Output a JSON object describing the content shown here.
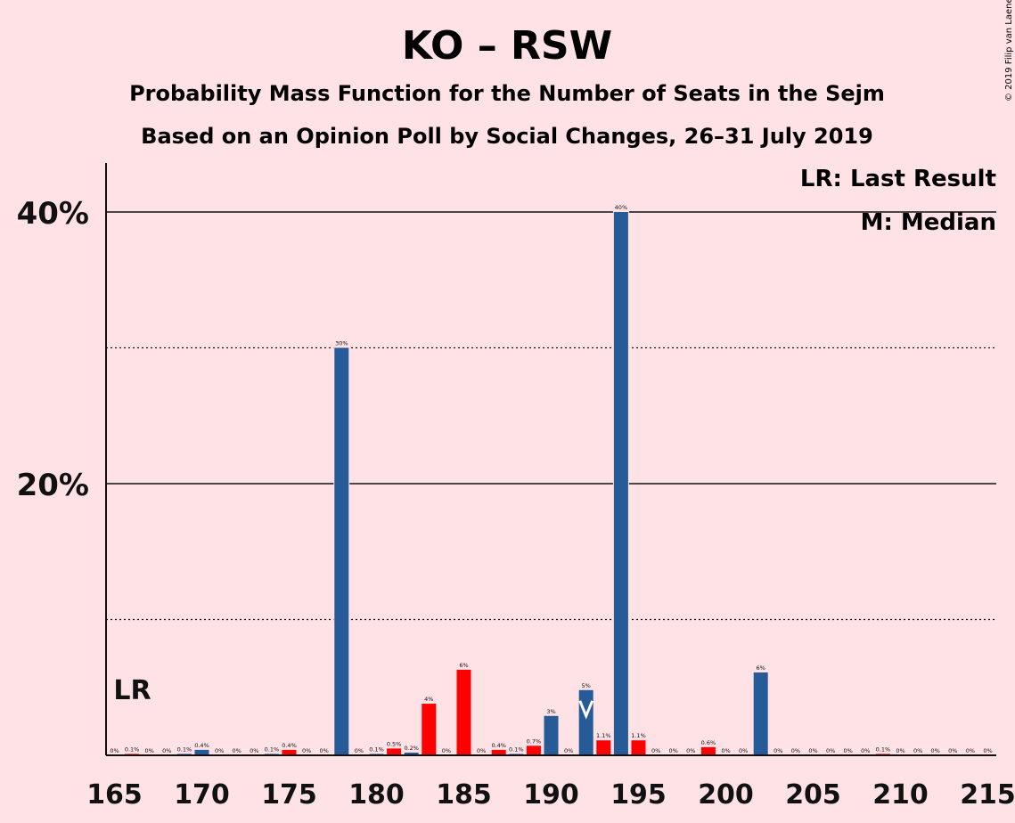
{
  "chart_data": {
    "type": "bar",
    "title": "KO – RSW",
    "subtitle": "Probability Mass Function for the Number of Seats in the Sejm",
    "subtitle2": "Based on an Opinion Poll by Social Changes, 26–31 July 2019",
    "copyright": "© 2019 Filip van Laenen",
    "xlim": [
      165,
      215
    ],
    "ylim": [
      0,
      43.5
    ],
    "x_ticks": [
      "165",
      "170",
      "175",
      "180",
      "185",
      "190",
      "195",
      "200",
      "205",
      "210",
      "215"
    ],
    "y_ticks": [
      {
        "value": 20,
        "label": "20%"
      },
      {
        "value": 40,
        "label": "40%"
      }
    ],
    "minor_gridlines": [
      10,
      30
    ],
    "grid": true,
    "legend": {
      "position": "top-right",
      "entries": [
        "LR: Last Result",
        "M: Median"
      ]
    },
    "last_result": {
      "seat": 165,
      "label": "LR"
    },
    "median": {
      "seat": 192
    },
    "colors": {
      "blue": "#275b97",
      "red": "#ff0000",
      "background": "#ffe2e6",
      "axis": "#111111"
    },
    "bars": [
      {
        "seat": 165,
        "value": 0,
        "label": "0%",
        "color": "blue"
      },
      {
        "seat": 166,
        "value": 0.1,
        "label": "0.1%",
        "color": "red"
      },
      {
        "seat": 167,
        "value": 0,
        "label": "0%",
        "color": "blue"
      },
      {
        "seat": 168,
        "value": 0,
        "label": "0%",
        "color": "red"
      },
      {
        "seat": 169,
        "value": 0.1,
        "label": "0.1%",
        "color": "blue"
      },
      {
        "seat": 170,
        "value": 0.4,
        "label": "0.4%",
        "color": "blue"
      },
      {
        "seat": 171,
        "value": 0,
        "label": "0%",
        "color": "red"
      },
      {
        "seat": 172,
        "value": 0,
        "label": "0%",
        "color": "blue"
      },
      {
        "seat": 173,
        "value": 0,
        "label": "0%",
        "color": "red"
      },
      {
        "seat": 174,
        "value": 0.1,
        "label": "0.1%",
        "color": "blue"
      },
      {
        "seat": 175,
        "value": 0.4,
        "label": "0.4%",
        "color": "red"
      },
      {
        "seat": 176,
        "value": 0,
        "label": "0%",
        "color": "blue"
      },
      {
        "seat": 177,
        "value": 0,
        "label": "0%",
        "color": "red"
      },
      {
        "seat": 178,
        "value": 30,
        "label": "30%",
        "color": "blue"
      },
      {
        "seat": 179,
        "value": 0,
        "label": "0%",
        "color": "red"
      },
      {
        "seat": 180,
        "value": 0.1,
        "label": "0.1%",
        "color": "blue"
      },
      {
        "seat": 181,
        "value": 0.5,
        "label": "0.5%",
        "color": "red"
      },
      {
        "seat": 182,
        "value": 0.2,
        "label": "0.2%",
        "color": "blue"
      },
      {
        "seat": 183,
        "value": 3.8,
        "label": "4%",
        "color": "red"
      },
      {
        "seat": 184,
        "value": 0,
        "label": "0%",
        "color": "blue"
      },
      {
        "seat": 185,
        "value": 6.3,
        "label": "6%",
        "color": "red"
      },
      {
        "seat": 186,
        "value": 0,
        "label": "0%",
        "color": "blue"
      },
      {
        "seat": 187,
        "value": 0.4,
        "label": "0.4%",
        "color": "red"
      },
      {
        "seat": 188,
        "value": 0.1,
        "label": "0.1%",
        "color": "blue"
      },
      {
        "seat": 189,
        "value": 0.7,
        "label": "0.7%",
        "color": "red"
      },
      {
        "seat": 190,
        "value": 2.9,
        "label": "3%",
        "color": "blue"
      },
      {
        "seat": 191,
        "value": 0,
        "label": "0%",
        "color": "red"
      },
      {
        "seat": 192,
        "value": 4.8,
        "label": "5%",
        "color": "blue"
      },
      {
        "seat": 193,
        "value": 1.1,
        "label": "1.1%",
        "color": "red"
      },
      {
        "seat": 194,
        "value": 40,
        "label": "40%",
        "color": "blue"
      },
      {
        "seat": 195,
        "value": 1.1,
        "label": "1.1%",
        "color": "red"
      },
      {
        "seat": 196,
        "value": 0,
        "label": "0%",
        "color": "blue"
      },
      {
        "seat": 197,
        "value": 0,
        "label": "0%",
        "color": "red"
      },
      {
        "seat": 198,
        "value": 0,
        "label": "0%",
        "color": "blue"
      },
      {
        "seat": 199,
        "value": 0.6,
        "label": "0.6%",
        "color": "red"
      },
      {
        "seat": 200,
        "value": 0,
        "label": "0%",
        "color": "blue"
      },
      {
        "seat": 201,
        "value": 0,
        "label": "0%",
        "color": "red"
      },
      {
        "seat": 202,
        "value": 6.1,
        "label": "6%",
        "color": "blue"
      },
      {
        "seat": 203,
        "value": 0,
        "label": "0%",
        "color": "red"
      },
      {
        "seat": 204,
        "value": 0,
        "label": "0%",
        "color": "blue"
      },
      {
        "seat": 205,
        "value": 0,
        "label": "0%",
        "color": "red"
      },
      {
        "seat": 206,
        "value": 0,
        "label": "0%",
        "color": "blue"
      },
      {
        "seat": 207,
        "value": 0,
        "label": "0%",
        "color": "red"
      },
      {
        "seat": 208,
        "value": 0,
        "label": "0%",
        "color": "blue"
      },
      {
        "seat": 209,
        "value": 0.1,
        "label": "0.1%",
        "color": "red"
      },
      {
        "seat": 210,
        "value": 0,
        "label": "0%",
        "color": "blue"
      },
      {
        "seat": 211,
        "value": 0,
        "label": "0%",
        "color": "red"
      },
      {
        "seat": 212,
        "value": 0,
        "label": "0%",
        "color": "blue"
      },
      {
        "seat": 213,
        "value": 0,
        "label": "0%",
        "color": "red"
      },
      {
        "seat": 214,
        "value": 0,
        "label": "0%",
        "color": "blue"
      },
      {
        "seat": 215,
        "value": 0,
        "label": "0%",
        "color": "red"
      }
    ]
  }
}
